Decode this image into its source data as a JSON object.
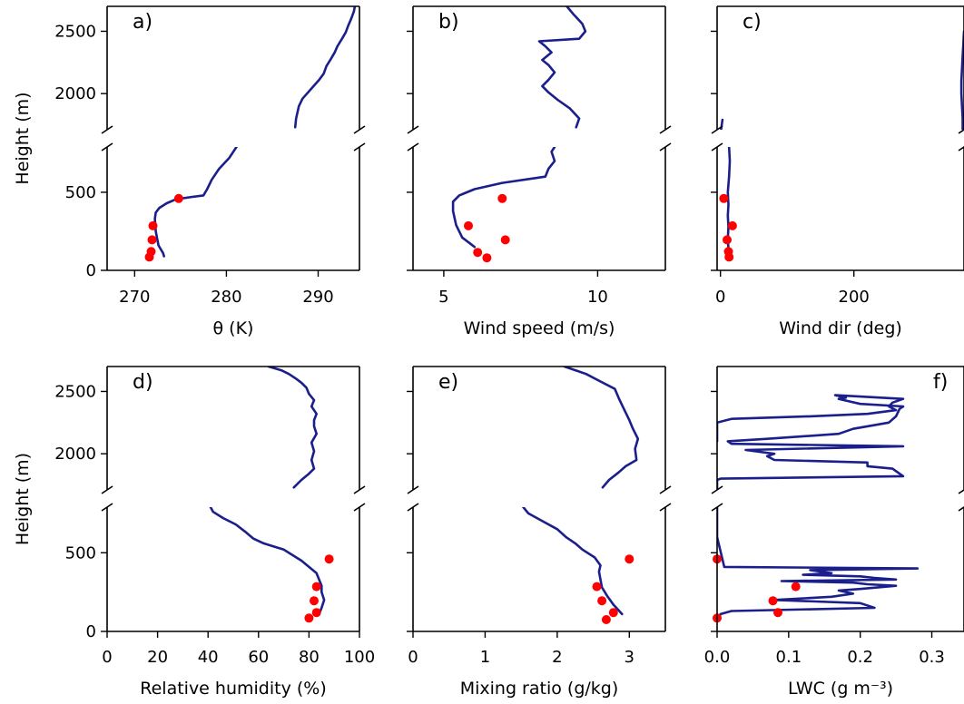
{
  "colors": {
    "profile": "#1a1f8c",
    "obs": "#ff0000"
  },
  "chart_data": [
    {
      "type": "line",
      "panel": "a)",
      "xlabel": "θ (K)",
      "ylabel": "Height (m)",
      "xlim": [
        267,
        294.5
      ],
      "xticks": [
        270,
        280,
        290
      ],
      "xtick_labels": [
        "270",
        "280",
        "290"
      ],
      "broken_y": {
        "upper": [
          1710,
          2700
        ],
        "lower": [
          0,
          790
        ]
      },
      "yticks_upper": [
        2000,
        2500
      ],
      "yticks_lower": [
        0,
        500
      ],
      "series": [
        {
          "kind": "line",
          "x": [
            287.5,
            287.6,
            287.9,
            288.3,
            288.9,
            289.5,
            290.1,
            290.6,
            290.9,
            291.4,
            291.8,
            292.1,
            292.6,
            293.0,
            293.3,
            293.6,
            293.9,
            294.0
          ],
          "y": [
            1730,
            1800,
            1900,
            1960,
            2010,
            2060,
            2110,
            2160,
            2220,
            2280,
            2330,
            2380,
            2440,
            2490,
            2550,
            2600,
            2660,
            2700
          ]
        },
        {
          "kind": "line",
          "x": [
            273.2,
            273.1,
            272.6,
            272.3,
            272.2,
            272.3,
            272.7,
            273.5,
            274.5,
            276.2,
            277.5,
            277.9,
            278.4,
            279.2,
            280.3,
            281.1
          ],
          "y": [
            90,
            110,
            160,
            250,
            330,
            370,
            400,
            430,
            455,
            470,
            480,
            520,
            580,
            650,
            720,
            790
          ]
        },
        {
          "kind": "points",
          "x": [
            271.6,
            271.8,
            271.9,
            272.0,
            274.8
          ],
          "y": [
            85,
            120,
            195,
            285,
            460
          ]
        }
      ]
    },
    {
      "type": "line",
      "panel": "b)",
      "xlabel": "Wind speed (m/s)",
      "ylabel": "",
      "xlim": [
        4,
        12.2
      ],
      "xticks": [
        5,
        10
      ],
      "xtick_labels": [
        "5",
        "10"
      ],
      "broken_y": {
        "upper": [
          1710,
          2700
        ],
        "lower": [
          0,
          790
        ]
      },
      "yticks_upper": [
        2000,
        2500
      ],
      "yticks_lower": [
        0,
        500
      ],
      "series": [
        {
          "kind": "line",
          "x": [
            9.3,
            9.4,
            9.1,
            8.7,
            8.4,
            8.2,
            8.4,
            8.6,
            8.4,
            8.2,
            8.5,
            8.3,
            8.1,
            9.4,
            9.6,
            9.5,
            9.2,
            9.0
          ],
          "y": [
            1730,
            1800,
            1880,
            1950,
            2010,
            2060,
            2110,
            2170,
            2230,
            2270,
            2330,
            2380,
            2420,
            2440,
            2500,
            2560,
            2640,
            2700
          ]
        },
        {
          "kind": "line",
          "x": [
            6.0,
            5.6,
            5.4,
            5.3,
            5.3,
            5.5,
            6.0,
            6.9,
            8.3,
            8.4,
            8.6,
            8.5,
            8.6
          ],
          "y": [
            150,
            210,
            290,
            380,
            440,
            480,
            520,
            560,
            600,
            650,
            700,
            760,
            790
          ]
        },
        {
          "kind": "points",
          "x": [
            6.1,
            5.8,
            7.0,
            6.9,
            6.4
          ],
          "y": [
            115,
            285,
            195,
            460,
            80
          ]
        }
      ]
    },
    {
      "type": "line",
      "panel": "c)",
      "xlabel": "Wind dir (deg)",
      "ylabel": "",
      "xlim": [
        -5,
        365
      ],
      "xticks": [
        0,
        200
      ],
      "xtick_labels": [
        "0",
        "200"
      ],
      "broken_y": {
        "upper": [
          1710,
          2700
        ],
        "lower": [
          0,
          790
        ]
      },
      "yticks_upper": [
        2000,
        2500
      ],
      "yticks_lower": [
        0,
        500
      ],
      "series": [
        {
          "kind": "line",
          "x": [
            363,
            363,
            362,
            361,
            361,
            362,
            363,
            364,
            365
          ],
          "y": [
            1710,
            1800,
            1900,
            2000,
            2100,
            2200,
            2300,
            2400,
            2500
          ]
        },
        {
          "kind": "line",
          "x": [
            1,
            3
          ],
          "y": [
            1710,
            1790
          ]
        },
        {
          "kind": "line",
          "x": [
            14,
            12,
            11,
            12,
            11,
            12,
            11,
            13,
            14,
            13
          ],
          "y": [
            90,
            140,
            200,
            280,
            350,
            420,
            500,
            600,
            700,
            790
          ]
        },
        {
          "kind": "points",
          "x": [
            13,
            12,
            10,
            18,
            5
          ],
          "y": [
            85,
            120,
            195,
            285,
            460
          ]
        }
      ]
    },
    {
      "type": "line",
      "panel": "d)",
      "xlabel": "Relative humidity (%)",
      "ylabel": "Height (m)",
      "xlim": [
        0,
        100
      ],
      "xticks": [
        0,
        20,
        40,
        60,
        80,
        100
      ],
      "xtick_labels": [
        "0",
        "20",
        "40",
        "60",
        "80",
        "100"
      ],
      "broken_y": {
        "upper": [
          1710,
          2700
        ],
        "lower": [
          0,
          790
        ]
      },
      "yticks_upper": [
        2000,
        2500
      ],
      "yticks_lower": [
        0,
        500
      ],
      "series": [
        {
          "kind": "line",
          "x": [
            74,
            77,
            80,
            82,
            81,
            82,
            81,
            83,
            82,
            82,
            83,
            81,
            82,
            80,
            79,
            77,
            75,
            72,
            69,
            64
          ],
          "y": [
            1730,
            1790,
            1840,
            1880,
            1950,
            2020,
            2090,
            2160,
            2220,
            2270,
            2320,
            2380,
            2430,
            2480,
            2530,
            2570,
            2600,
            2640,
            2670,
            2700
          ]
        },
        {
          "kind": "line",
          "x": [
            84,
            85,
            86,
            85,
            85,
            84,
            83,
            80,
            77,
            73,
            70,
            66,
            62,
            58,
            55,
            51,
            46,
            42,
            41
          ],
          "y": [
            110,
            150,
            200,
            250,
            290,
            330,
            370,
            410,
            450,
            490,
            520,
            540,
            560,
            590,
            630,
            680,
            720,
            760,
            790
          ]
        },
        {
          "kind": "points",
          "x": [
            80,
            83,
            82,
            83,
            88
          ],
          "y": [
            85,
            120,
            195,
            285,
            460
          ]
        }
      ]
    },
    {
      "type": "line",
      "panel": "e)",
      "xlabel": "Mixing ratio (g/kg)",
      "ylabel": "",
      "xlim": [
        0,
        3.5
      ],
      "xticks": [
        0,
        1,
        2,
        3
      ],
      "xtick_labels": [
        "0",
        "1",
        "2",
        "3"
      ],
      "broken_y": {
        "upper": [
          1710,
          2700
        ],
        "lower": [
          0,
          790
        ]
      },
      "yticks_upper": [
        2000,
        2500
      ],
      "yticks_lower": [
        0,
        500
      ],
      "series": [
        {
          "kind": "line",
          "x": [
            2.63,
            2.72,
            2.85,
            2.95,
            3.1,
            3.08,
            3.12,
            3.05,
            3.0,
            2.95,
            2.9,
            2.85,
            2.8,
            2.6,
            2.4,
            2.1
          ],
          "y": [
            1730,
            1790,
            1850,
            1900,
            1950,
            2040,
            2120,
            2200,
            2270,
            2330,
            2390,
            2450,
            2520,
            2580,
            2640,
            2700
          ]
        },
        {
          "kind": "line",
          "x": [
            2.9,
            2.78,
            2.7,
            2.62,
            2.6,
            2.58,
            2.6,
            2.52,
            2.35,
            2.25,
            2.12,
            2.0,
            1.8,
            1.6,
            1.53
          ],
          "y": [
            110,
            170,
            220,
            280,
            330,
            380,
            420,
            470,
            520,
            560,
            600,
            650,
            700,
            750,
            790
          ]
        },
        {
          "kind": "points",
          "x": [
            2.68,
            2.78,
            2.62,
            2.55,
            3.0
          ],
          "y": [
            75,
            120,
            195,
            285,
            460
          ]
        }
      ]
    },
    {
      "type": "line",
      "panel": "f)",
      "xlabel": "LWC (g m⁻³)",
      "ylabel": "",
      "xlim": [
        0,
        0.345
      ],
      "xticks": [
        0,
        0.1,
        0.2,
        0.3
      ],
      "xtick_labels": [
        "0.0",
        "0.1",
        "0.2",
        "0.3"
      ],
      "broken_y": {
        "upper": [
          1710,
          2700
        ],
        "lower": [
          0,
          790
        ]
      },
      "yticks_upper": [
        2000,
        2500
      ],
      "yticks_lower": [
        0,
        500
      ],
      "series": [
        {
          "kind": "line",
          "x": [
            0,
            0,
            0.005,
            0.26,
            0.245,
            0.21,
            0.21,
            0.08,
            0.07,
            0.08,
            0.04,
            0.26,
            0.02,
            0.015,
            0.07,
            0.17,
            0.19,
            0.24,
            0.25,
            0.255,
            0.26,
            0.2,
            0.185,
            0.17,
            0.18,
            0.165,
            0.26,
            0.245,
            0.24,
            0.25,
            0.21,
            0.13,
            0.02,
            0,
            0,
            0
          ],
          "y": [
            1710,
            1790,
            1800,
            1820,
            1880,
            1900,
            1930,
            1950,
            1980,
            2000,
            2030,
            2060,
            2080,
            2100,
            2120,
            2160,
            2200,
            2250,
            2300,
            2360,
            2380,
            2400,
            2420,
            2440,
            2450,
            2470,
            2440,
            2410,
            2380,
            2350,
            2320,
            2300,
            2280,
            2250,
            2200,
            2100
          ]
        },
        {
          "kind": "line",
          "x": [
            0,
            0,
            0.01,
            0.28,
            0.13,
            0.16,
            0.12,
            0.2,
            0.22,
            0.25,
            0.09,
            0.19,
            0.21,
            0.25,
            0.2,
            0.17,
            0.19,
            0.16,
            0.08,
            0.2,
            0.22,
            0.02,
            0.005,
            0.002
          ],
          "y": [
            790,
            600,
            410,
            400,
            390,
            370,
            360,
            350,
            340,
            330,
            320,
            310,
            300,
            290,
            270,
            260,
            240,
            220,
            200,
            180,
            150,
            130,
            110,
            90
          ]
        },
        {
          "kind": "points",
          "x": [
            0.085,
            0.078,
            0.11,
            0.0,
            0.0
          ],
          "y": [
            120,
            195,
            285,
            460,
            85
          ]
        }
      ]
    }
  ]
}
